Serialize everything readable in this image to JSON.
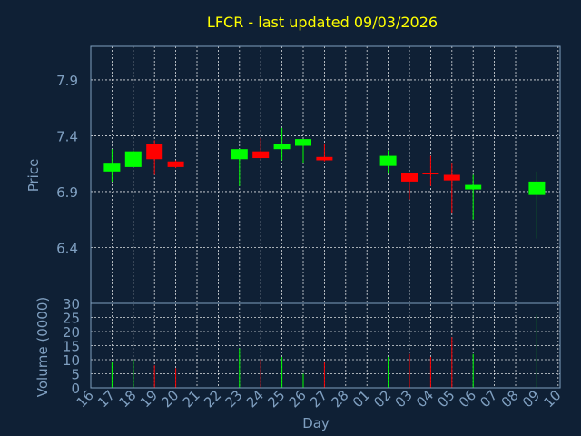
{
  "chart_data": {
    "type": "candlestick",
    "title": "LFCR - last updated 09/03/2026",
    "xlabel": "Day",
    "x_ticks": [
      "16",
      "17",
      "18",
      "19",
      "20",
      "21",
      "22",
      "23",
      "24",
      "25",
      "26",
      "27",
      "28",
      "01",
      "02",
      "03",
      "04",
      "05",
      "06",
      "07",
      "08",
      "09",
      "10"
    ],
    "price_panel": {
      "ylabel": "Price",
      "y_ticks": [
        6.4,
        6.9,
        7.4,
        7.9
      ],
      "ylim": [
        5.9,
        8.2
      ],
      "grid": true
    },
    "volume_panel": {
      "ylabel": "Volume (0000)",
      "y_ticks": [
        0,
        5,
        10,
        15,
        20,
        25,
        30
      ],
      "ylim": [
        0,
        30
      ],
      "grid": true
    },
    "colors": {
      "background": "#0f2035",
      "up": "#00ff00",
      "down": "#ff0000",
      "title": "#ffff00",
      "axis_text": "#7f9fc0",
      "grid": "#ffffff",
      "frame": "#7f9fc0"
    },
    "candles": [
      {
        "day": "17",
        "open": 7.08,
        "high": 7.28,
        "low": 6.99,
        "close": 7.15,
        "volume": 9
      },
      {
        "day": "18",
        "open": 7.12,
        "high": 7.27,
        "low": 7.12,
        "close": 7.26,
        "volume": 10
      },
      {
        "day": "19",
        "open": 7.33,
        "high": 7.36,
        "low": 7.05,
        "close": 7.19,
        "volume": 8
      },
      {
        "day": "20",
        "open": 7.17,
        "high": 7.18,
        "low": 7.11,
        "close": 7.12,
        "volume": 7
      },
      {
        "day": "23",
        "open": 7.19,
        "high": 7.28,
        "low": 6.95,
        "close": 7.28,
        "volume": 14
      },
      {
        "day": "24",
        "open": 7.26,
        "high": 7.38,
        "low": 7.19,
        "close": 7.2,
        "volume": 10
      },
      {
        "day": "25",
        "open": 7.28,
        "high": 7.47,
        "low": 7.18,
        "close": 7.33,
        "volume": 11
      },
      {
        "day": "26",
        "open": 7.31,
        "high": 7.37,
        "low": 7.16,
        "close": 7.37,
        "volume": 5
      },
      {
        "day": "27",
        "open": 7.21,
        "high": 7.33,
        "low": 7.17,
        "close": 7.18,
        "volume": 9
      },
      {
        "day": "02",
        "open": 7.13,
        "high": 7.27,
        "low": 7.06,
        "close": 7.22,
        "volume": 11
      },
      {
        "day": "03",
        "open": 7.07,
        "high": 7.07,
        "low": 6.83,
        "close": 6.99,
        "volume": 12
      },
      {
        "day": "04",
        "open": 7.07,
        "high": 7.22,
        "low": 6.95,
        "close": 7.06,
        "volume": 11
      },
      {
        "day": "05",
        "open": 7.05,
        "high": 7.15,
        "low": 6.71,
        "close": 7.0,
        "volume": 18
      },
      {
        "day": "06",
        "open": 6.92,
        "high": 7.05,
        "low": 6.65,
        "close": 6.96,
        "volume": 12
      },
      {
        "day": "09",
        "open": 6.87,
        "high": 7.08,
        "low": 6.48,
        "close": 6.99,
        "volume": 26
      }
    ]
  }
}
